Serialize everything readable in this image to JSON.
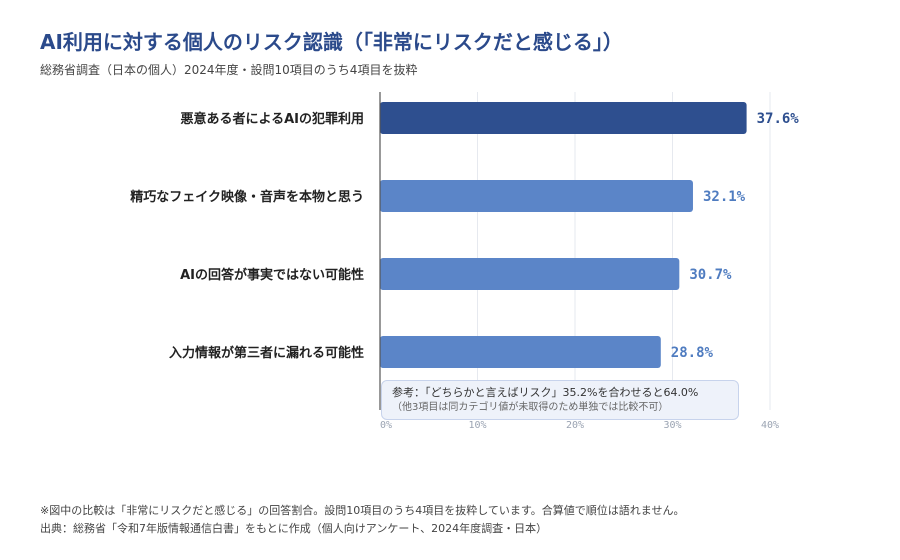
{
  "title": "AI利用に対する個人のリスク認識（「非常にリスクだと感じる」）",
  "subtitle": "総務省調査（日本の個人）2024年度・設問10項目のうち4項目を抜粋",
  "colors": {
    "highlight": "#2e4f8f",
    "bar": "#5b85c8",
    "highlight_label": "#2e4f8f",
    "bar_label": "#4f7cc0"
  },
  "chart_data": {
    "type": "bar",
    "orientation": "horizontal",
    "categories": [
      "悪意ある者によるAIの犯罪利用",
      "精巧なフェイク映像・音声を本物と思う",
      "AIの回答が事実ではない可能性",
      "入力情報が第三者に漏れる可能性"
    ],
    "values": [
      37.6,
      32.1,
      30.7,
      28.8
    ],
    "value_labels": [
      "37.6%",
      "32.1%",
      "30.7%",
      "28.8%"
    ],
    "xlim": [
      0,
      40
    ],
    "ticks": [
      0,
      10,
      20,
      30,
      40
    ],
    "tick_labels": [
      "0%",
      "10%",
      "20%",
      "30%",
      "40%"
    ],
    "grid": true,
    "highlight_index": 0
  },
  "note": {
    "line1": "参考：「どちらかと言えばリスク」35.2%を合わせると64.0%",
    "line2": "（他3項目は同カテゴリ値が未取得のため単独では比較不可）"
  },
  "footer": {
    "line1": "※図中の比較は「非常にリスクだと感じる」の回答割合。設問10項目のうち4項目を抜粋しています。合算値で順位は語れません。",
    "line2": "出典：総務省「令和7年版情報通信白書」をもとに作成（個人向けアンケート、2024年度調査・日本）"
  }
}
